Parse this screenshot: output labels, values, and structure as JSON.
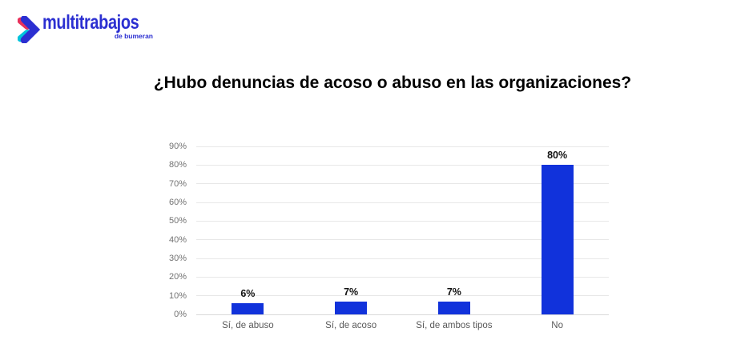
{
  "logo": {
    "brand": "multitrabajos",
    "tagline": "de bumeran",
    "brand_color": "#2b2fd1",
    "icon_colors": {
      "red": "#e8315b",
      "blue": "#2b2fd1",
      "cyan": "#00c3dc"
    }
  },
  "chart_data": {
    "type": "bar",
    "title": "¿Hubo denuncias de acoso o abuso en las organizaciones?",
    "categories": [
      "Sí, de abuso",
      "Sí, de acoso",
      "Sí, de ambos tipos",
      "No"
    ],
    "values": [
      6,
      7,
      7,
      80
    ],
    "value_labels": [
      "6%",
      "7%",
      "7%",
      "80%"
    ],
    "xlabel": "",
    "ylabel": "",
    "ylim": [
      0,
      90
    ],
    "y_tick_step": 10,
    "y_tick_labels": [
      "0%",
      "10%",
      "20%",
      "30%",
      "40%",
      "50%",
      "60%",
      "70%",
      "80%",
      "90%"
    ],
    "grid": true,
    "legend": false,
    "colors": {
      "bar": "#1132db",
      "gridline": "#e7e7e7",
      "baseline": "#d9d9d9",
      "y_tick_label": "#737373",
      "category_label": "#595959",
      "value_label": "#111111",
      "title": "#000000"
    }
  }
}
